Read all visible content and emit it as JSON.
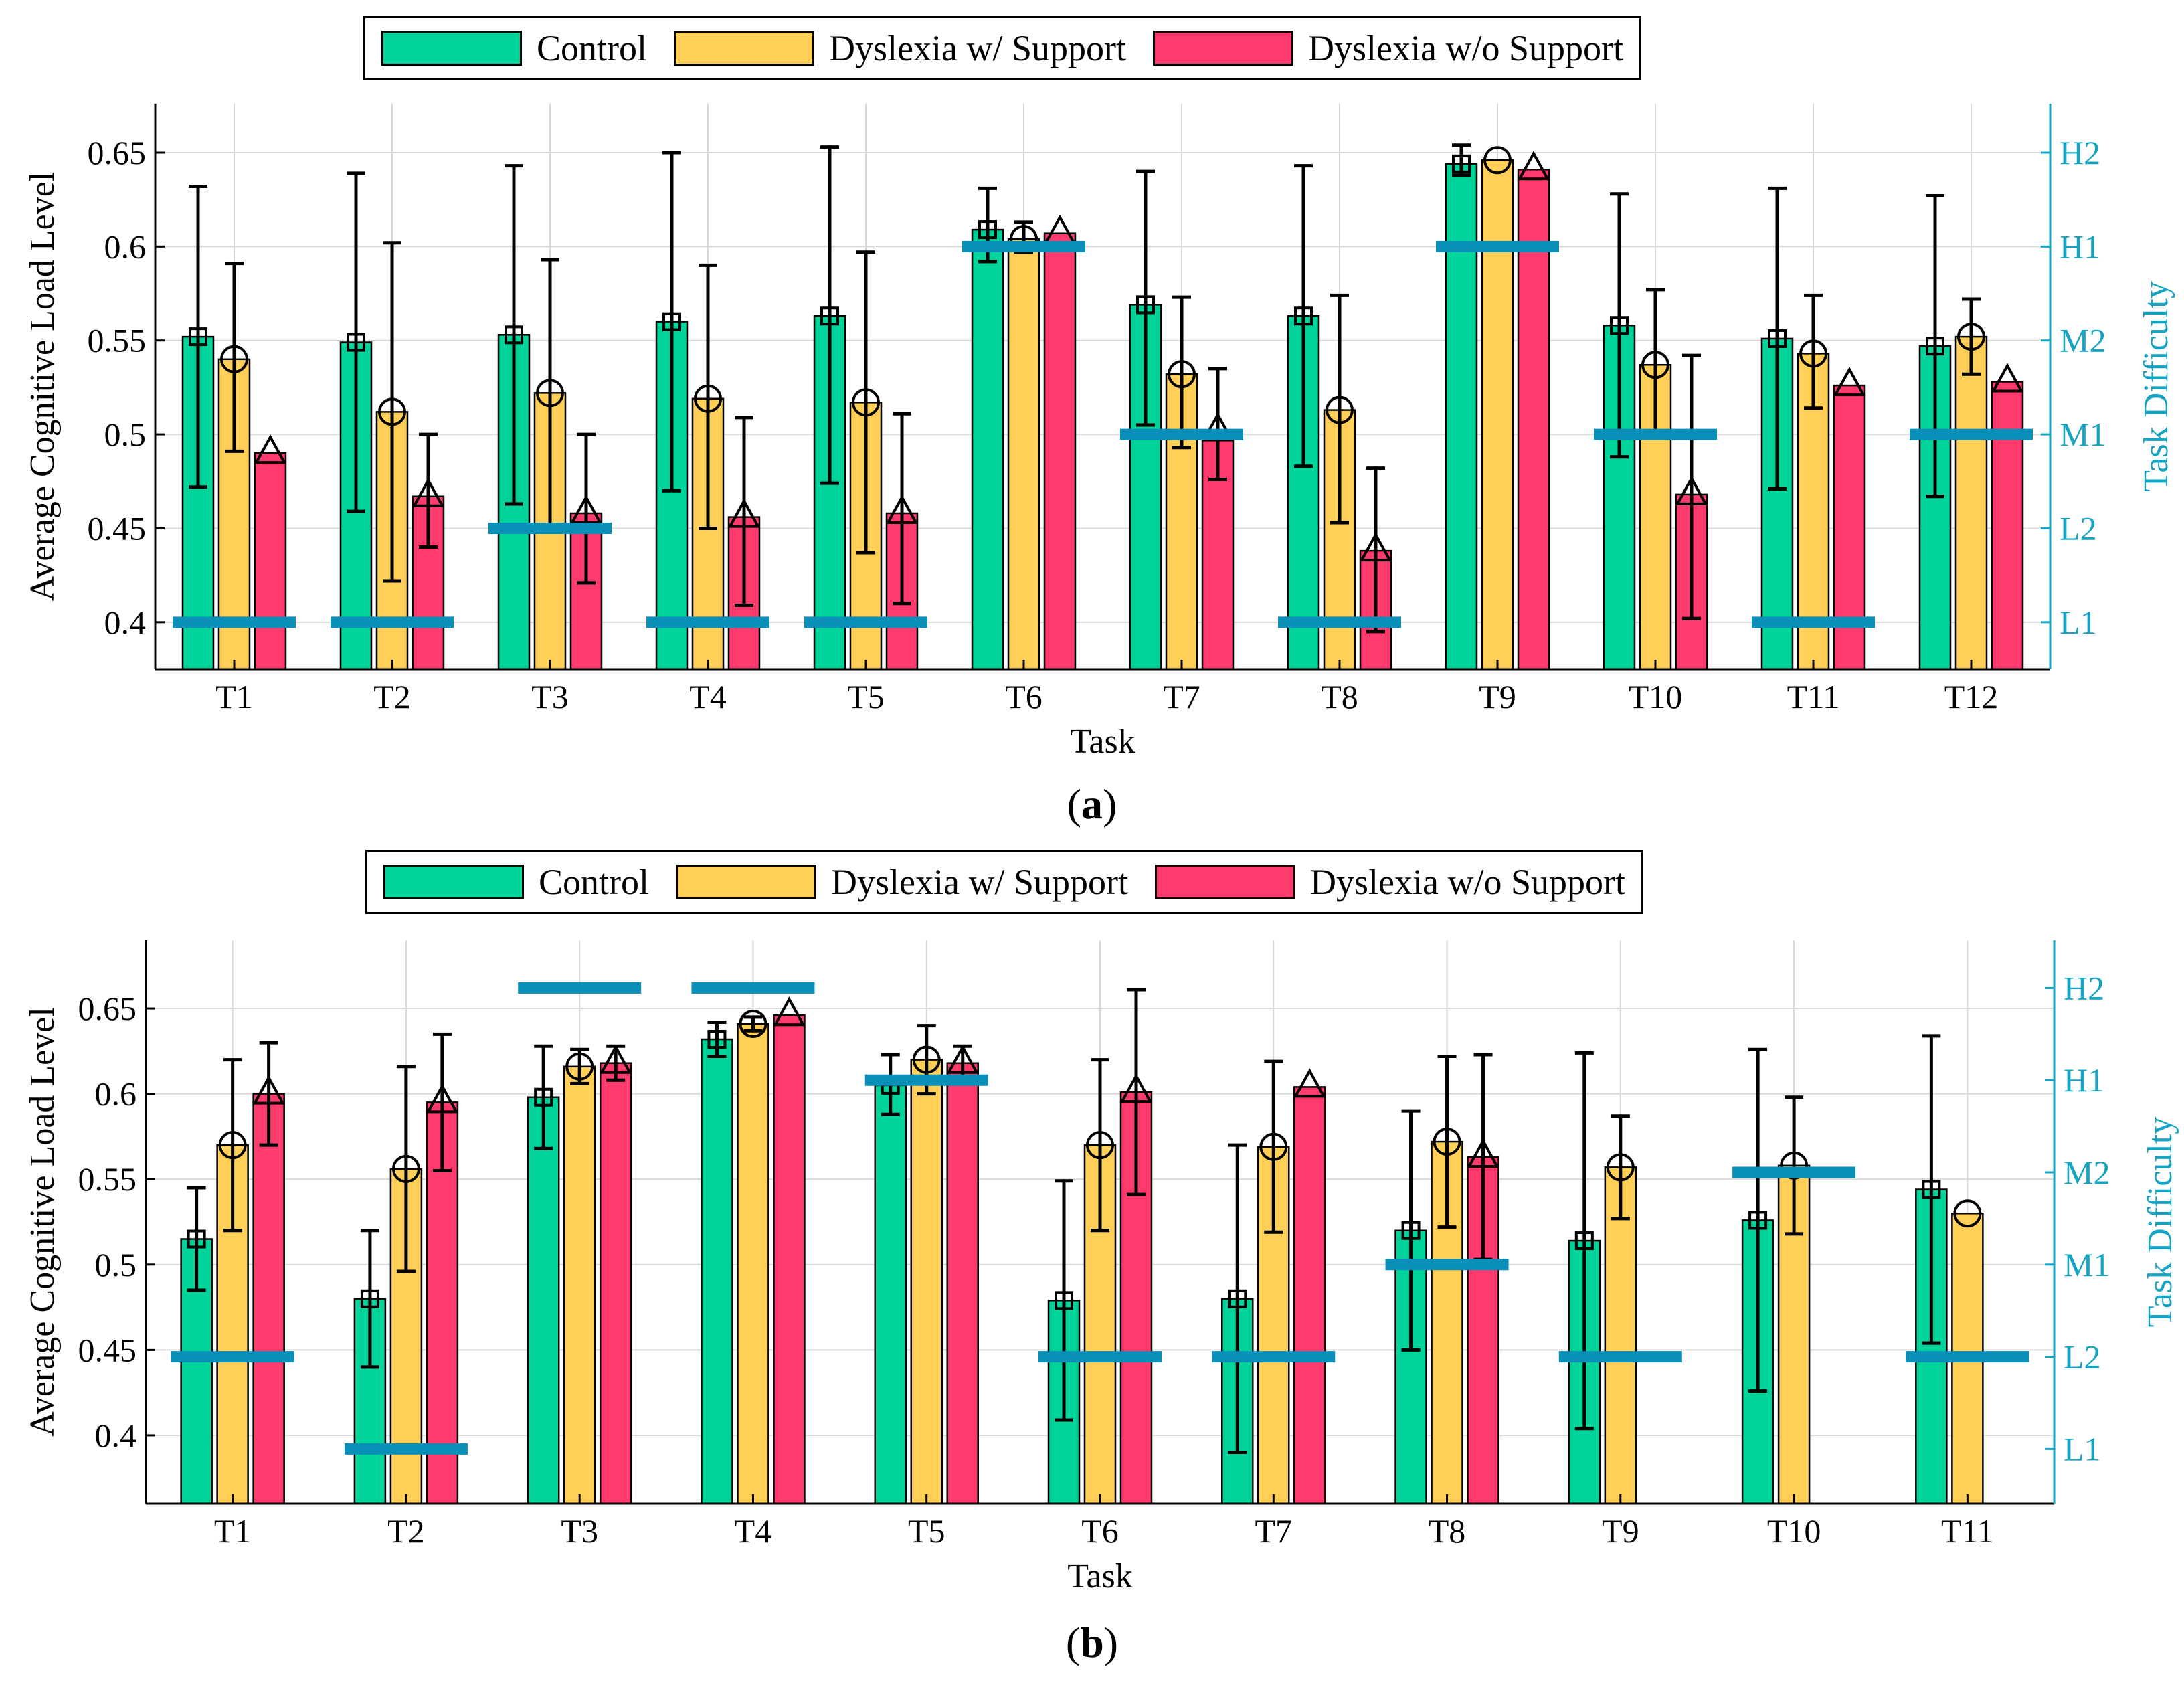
{
  "colors": {
    "control": "#00d49a",
    "with_support": "#ffcf57",
    "without_support": "#ff3b6e",
    "difficulty": "#0a8fb8",
    "axis": "#000000",
    "right_axis": "#15a3c2",
    "grid": "#d9d9d9"
  },
  "legend": {
    "control": "Control",
    "with_support": "Dyslexia w/ Support",
    "without_support": "Dyslexia w/o Support"
  },
  "chart_data": [
    {
      "id": "a",
      "type": "bar",
      "panel_label": "a",
      "xlabel": "Task",
      "ylabel": "Average Cognitive Load Level",
      "y2label": "Task Difficulty",
      "ylim": [
        0.375,
        0.676
      ],
      "yticks": [
        0.4,
        0.45,
        0.5,
        0.55,
        0.6,
        0.65
      ],
      "y2ticks": [
        {
          "label": "L1",
          "value": 0.4
        },
        {
          "label": "L2",
          "value": 0.45
        },
        {
          "label": "M1",
          "value": 0.5
        },
        {
          "label": "M2",
          "value": 0.55
        },
        {
          "label": "H1",
          "value": 0.6
        },
        {
          "label": "H2",
          "value": 0.65
        }
      ],
      "grid": true,
      "legend_position": "top-center",
      "categories": [
        "T1",
        "T2",
        "T3",
        "T4",
        "T5",
        "T6",
        "T7",
        "T8",
        "T9",
        "T10",
        "T11",
        "T12"
      ],
      "series": [
        {
          "name": "Control",
          "key": "control",
          "marker": "square",
          "values": [
            0.552,
            0.549,
            0.553,
            0.56,
            0.563,
            0.609,
            0.569,
            0.563,
            0.644,
            0.558,
            0.551,
            0.547
          ],
          "err_low": [
            0.472,
            0.459,
            0.463,
            0.47,
            0.474,
            0.592,
            0.505,
            0.483,
            0.638,
            0.488,
            0.471,
            0.467
          ],
          "err_high": [
            0.632,
            0.639,
            0.643,
            0.65,
            0.653,
            0.631,
            0.64,
            0.643,
            0.654,
            0.628,
            0.631,
            0.627
          ]
        },
        {
          "name": "Dyslexia w/ Support",
          "key": "with_support",
          "marker": "circle",
          "values": [
            0.54,
            0.512,
            0.522,
            0.519,
            0.517,
            0.604,
            0.532,
            0.513,
            0.646,
            0.537,
            0.543,
            0.552
          ],
          "err_low": [
            0.491,
            0.422,
            0.452,
            0.45,
            0.437,
            0.597,
            0.493,
            0.453,
            0.646,
            0.498,
            0.514,
            0.532
          ],
          "err_high": [
            0.591,
            0.602,
            0.593,
            0.59,
            0.597,
            0.613,
            0.573,
            0.574,
            0.646,
            0.577,
            0.574,
            0.572
          ]
        },
        {
          "name": "Dyslexia w/o Support",
          "key": "without_support",
          "marker": "triangle",
          "values": [
            0.49,
            0.467,
            0.458,
            0.456,
            0.458,
            0.607,
            0.502,
            0.438,
            0.641,
            0.468,
            0.526,
            0.528
          ],
          "err_low": [
            0.49,
            0.44,
            0.421,
            0.409,
            0.41,
            0.607,
            0.476,
            0.395,
            0.641,
            0.402,
            0.526,
            0.528
          ],
          "err_high": [
            0.49,
            0.5,
            0.5,
            0.509,
            0.511,
            0.607,
            0.535,
            0.482,
            0.641,
            0.542,
            0.526,
            0.528
          ]
        }
      ],
      "difficulty": [
        "L1",
        "L1",
        "L2",
        "L1",
        "L1",
        "H1",
        "M1",
        "L1",
        "H1",
        "M1",
        "L1",
        "M1"
      ]
    },
    {
      "id": "b",
      "type": "bar",
      "panel_label": "b",
      "xlabel": "Task",
      "ylabel": "Average Cognitive Load Level",
      "y2label": "Task Difficulty",
      "ylim": [
        0.36,
        0.69
      ],
      "yticks": [
        0.4,
        0.45,
        0.5,
        0.55,
        0.6,
        0.65
      ],
      "y2ticks": [
        {
          "label": "L1",
          "value": 0.392
        },
        {
          "label": "L2",
          "value": 0.446
        },
        {
          "label": "M1",
          "value": 0.5
        },
        {
          "label": "M2",
          "value": 0.554
        },
        {
          "label": "H1",
          "value": 0.608
        },
        {
          "label": "H2",
          "value": 0.662
        }
      ],
      "grid": true,
      "legend_position": "top-center",
      "categories": [
        "T1",
        "T2",
        "T3",
        "T4",
        "T5",
        "T6",
        "T7",
        "T8",
        "T9",
        "T10",
        "T11"
      ],
      "series": [
        {
          "name": "Control",
          "key": "control",
          "marker": "square",
          "values": [
            0.515,
            0.48,
            0.598,
            0.632,
            0.605,
            0.479,
            0.48,
            0.52,
            0.514,
            0.526,
            0.544
          ],
          "err_low": [
            0.485,
            0.44,
            0.568,
            0.622,
            0.588,
            0.409,
            0.39,
            0.45,
            0.404,
            0.426,
            0.454
          ],
          "err_high": [
            0.545,
            0.52,
            0.628,
            0.642,
            0.623,
            0.549,
            0.57,
            0.59,
            0.624,
            0.626,
            0.634
          ]
        },
        {
          "name": "Dyslexia w/ Support",
          "key": "with_support",
          "marker": "circle",
          "values": [
            0.57,
            0.556,
            0.616,
            0.641,
            0.62,
            0.57,
            0.569,
            0.572,
            0.557,
            0.558,
            0.53
          ],
          "err_low": [
            0.52,
            0.496,
            0.606,
            0.637,
            0.6,
            0.52,
            0.519,
            0.522,
            0.527,
            0.518,
            0.53
          ],
          "err_high": [
            0.62,
            0.616,
            0.626,
            0.645,
            0.64,
            0.62,
            0.619,
            0.622,
            0.587,
            0.598,
            0.53
          ]
        },
        {
          "name": "Dyslexia w/o Support",
          "key": "without_support",
          "marker": "triangle",
          "values": [
            0.6,
            0.595,
            0.618,
            0.646,
            0.618,
            0.601,
            0.604,
            0.563,
            null,
            null,
            null
          ],
          "err_low": [
            0.57,
            0.555,
            0.608,
            0.646,
            0.608,
            0.541,
            0.604,
            0.503,
            null,
            null,
            null
          ],
          "err_high": [
            0.63,
            0.635,
            0.628,
            0.646,
            0.628,
            0.661,
            0.604,
            0.623,
            null,
            null,
            null
          ]
        }
      ],
      "difficulty": [
        "L2",
        "L1",
        "H2",
        "H2",
        "H1",
        "L2",
        "L2",
        "M1",
        "L2",
        "M2",
        "L2"
      ]
    }
  ]
}
